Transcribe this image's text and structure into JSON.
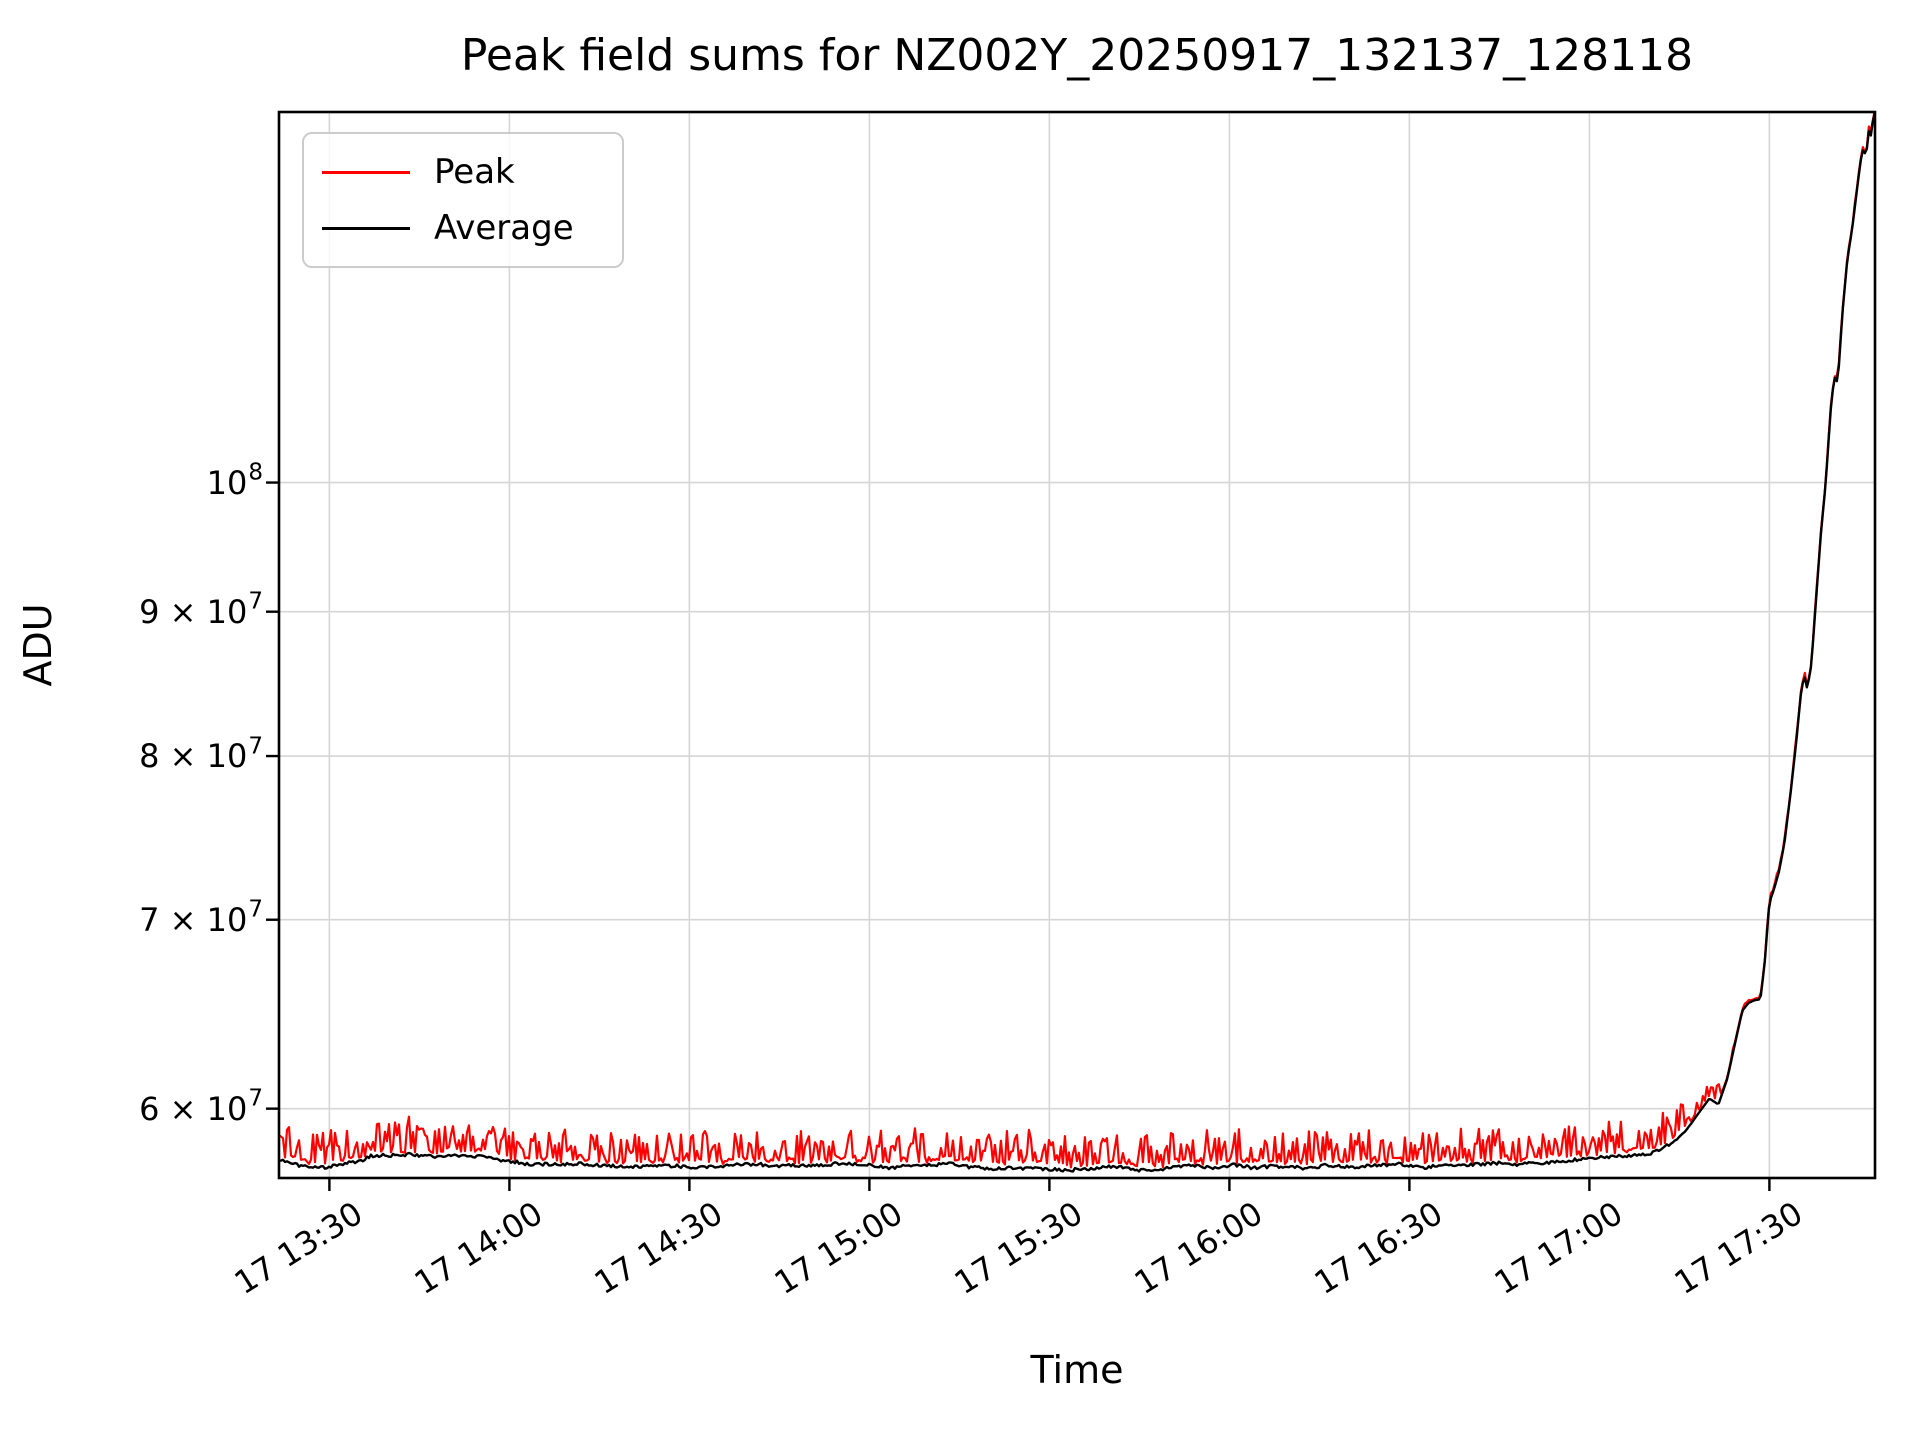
{
  "chart_data": {
    "type": "line",
    "title": "Peak field sums for NZ002Y_20250917_132137_128118",
    "xlabel": "Time",
    "ylabel": "ADU",
    "grid": true,
    "legend": {
      "position": "upper-left",
      "entries": [
        {
          "label": "Peak",
          "color": "#ff0000"
        },
        {
          "label": "Average",
          "color": "#000000"
        }
      ]
    },
    "x_axis": {
      "unit": "minutes after 13:00 on day 17",
      "range": [
        21.6,
        287.6
      ],
      "ticks": [
        {
          "t": 30,
          "label": "17 13:30"
        },
        {
          "t": 60,
          "label": "17 14:00"
        },
        {
          "t": 90,
          "label": "17 14:30"
        },
        {
          "t": 120,
          "label": "17 15:00"
        },
        {
          "t": 150,
          "label": "17 15:30"
        },
        {
          "t": 180,
          "label": "17 16:00"
        },
        {
          "t": 210,
          "label": "17 16:30"
        },
        {
          "t": 240,
          "label": "17 17:00"
        },
        {
          "t": 270,
          "label": "17 17:30"
        }
      ]
    },
    "y_axis": {
      "scale": "log",
      "range": [
        56700000,
        135300000
      ],
      "ticks": [
        {
          "value": 60000000,
          "prefix": "6 × 10",
          "exp": "7"
        },
        {
          "value": 70000000,
          "prefix": "7 × 10",
          "exp": "7"
        },
        {
          "value": 80000000,
          "prefix": "8 × 10",
          "exp": "7"
        },
        {
          "value": 90000000,
          "prefix": "9 × 10",
          "exp": "7"
        },
        {
          "value": 100000000,
          "prefix": "10",
          "exp": "8"
        }
      ]
    },
    "series": [
      {
        "name": "Peak",
        "color": "#ff0000",
        "relation": "average value plus positive noise spikes up to about 3 percent during the flat baseline"
      },
      {
        "name": "Average",
        "color": "#000000",
        "values_scale": 10000000,
        "keypoints": [
          [
            21.6,
            5.755
          ],
          [
            25,
            5.73
          ],
          [
            28,
            5.72
          ],
          [
            31,
            5.73
          ],
          [
            34,
            5.75
          ],
          [
            37,
            5.77
          ],
          [
            40,
            5.785
          ],
          [
            44,
            5.78
          ],
          [
            48,
            5.765
          ],
          [
            52,
            5.775
          ],
          [
            56,
            5.77
          ],
          [
            60,
            5.75
          ],
          [
            64,
            5.73
          ],
          [
            68,
            5.735
          ],
          [
            72,
            5.74
          ],
          [
            76,
            5.725
          ],
          [
            80,
            5.72
          ],
          [
            84,
            5.735
          ],
          [
            88,
            5.725
          ],
          [
            92,
            5.715
          ],
          [
            96,
            5.725
          ],
          [
            100,
            5.735
          ],
          [
            104,
            5.725
          ],
          [
            108,
            5.735
          ],
          [
            112,
            5.73
          ],
          [
            116,
            5.74
          ],
          [
            120,
            5.73
          ],
          [
            124,
            5.72
          ],
          [
            128,
            5.73
          ],
          [
            132,
            5.74
          ],
          [
            136,
            5.725
          ],
          [
            140,
            5.715
          ],
          [
            144,
            5.72
          ],
          [
            148,
            5.715
          ],
          [
            152,
            5.705
          ],
          [
            156,
            5.71
          ],
          [
            160,
            5.72
          ],
          [
            164,
            5.71
          ],
          [
            168,
            5.715
          ],
          [
            172,
            5.725
          ],
          [
            176,
            5.72
          ],
          [
            180,
            5.73
          ],
          [
            184,
            5.72
          ],
          [
            188,
            5.725
          ],
          [
            192,
            5.715
          ],
          [
            196,
            5.725
          ],
          [
            200,
            5.72
          ],
          [
            204,
            5.725
          ],
          [
            208,
            5.735
          ],
          [
            212,
            5.725
          ],
          [
            216,
            5.735
          ],
          [
            220,
            5.73
          ],
          [
            224,
            5.735
          ],
          [
            228,
            5.74
          ],
          [
            232,
            5.745
          ],
          [
            236,
            5.75
          ],
          [
            240,
            5.755
          ],
          [
            244,
            5.765
          ],
          [
            248,
            5.775
          ],
          [
            250,
            5.785
          ],
          [
            252,
            5.81
          ],
          [
            254,
            5.84
          ],
          [
            256,
            5.89
          ],
          [
            258,
            5.97
          ],
          [
            260,
            6.05
          ],
          [
            261.5,
            6.02
          ],
          [
            263,
            6.15
          ],
          [
            264.5,
            6.36
          ],
          [
            265.5,
            6.5
          ],
          [
            266.5,
            6.54
          ],
          [
            267.5,
            6.555
          ],
          [
            268.5,
            6.56
          ],
          [
            269.2,
            6.75
          ],
          [
            270,
            7.1
          ],
          [
            270.8,
            7.18
          ],
          [
            271.6,
            7.28
          ],
          [
            272.5,
            7.45
          ],
          [
            273.5,
            7.75
          ],
          [
            274.5,
            8.1
          ],
          [
            275.2,
            8.4
          ],
          [
            275.8,
            8.55
          ],
          [
            276.3,
            8.45
          ],
          [
            277,
            8.62
          ],
          [
            277.8,
            9.1
          ],
          [
            278.6,
            9.6
          ],
          [
            279.4,
            10.0
          ],
          [
            280.2,
            10.6
          ],
          [
            280.8,
            10.9
          ],
          [
            281.4,
            10.85
          ],
          [
            282.2,
            11.5
          ],
          [
            283,
            12.0
          ],
          [
            283.8,
            12.3
          ],
          [
            284.6,
            12.7
          ],
          [
            285.2,
            13.0
          ],
          [
            285.7,
            13.15
          ],
          [
            286.1,
            13.02
          ],
          [
            286.5,
            13.33
          ],
          [
            286.9,
            13.27
          ],
          [
            287.3,
            13.45
          ],
          [
            287.6,
            13.53
          ]
        ]
      }
    ],
    "noise": {
      "seed": 1337,
      "sample_step_min": 0.3333,
      "baseline_smooth_frac": 0.006,
      "baseline_jitter_frac": 0.0024,
      "spike_base_frac": 0.0045,
      "spike_big_frac": 0.018,
      "spike_rare_frac": 0.011,
      "spike_end_t": 256
    },
    "style": {
      "grid_color": "#d6d6d6",
      "spine_color": "#000000",
      "peak_color": "#ff0000",
      "average_color": "#000000"
    }
  }
}
